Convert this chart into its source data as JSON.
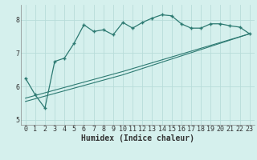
{
  "xlabel": "Humidex (Indice chaleur)",
  "ylabel": "",
  "bg_color": "#d5f0ed",
  "grid_color": "#b8dcd9",
  "line_color": "#2d7a72",
  "xlim": [
    -0.5,
    23.5
  ],
  "ylim": [
    4.85,
    8.45
  ],
  "xticks": [
    0,
    1,
    2,
    3,
    4,
    5,
    6,
    7,
    8,
    9,
    10,
    11,
    12,
    13,
    14,
    15,
    16,
    17,
    18,
    19,
    20,
    21,
    22,
    23
  ],
  "yticks": [
    5,
    6,
    7,
    8
  ],
  "main_line_x": [
    0,
    1,
    2,
    3,
    4,
    5,
    6,
    7,
    8,
    9,
    10,
    11,
    12,
    13,
    14,
    15,
    16,
    17,
    18,
    19,
    20,
    21,
    22,
    23
  ],
  "main_line_y": [
    6.25,
    5.75,
    5.35,
    6.75,
    6.85,
    7.3,
    7.85,
    7.65,
    7.7,
    7.55,
    7.92,
    7.75,
    7.92,
    8.05,
    8.15,
    8.12,
    7.88,
    7.75,
    7.75,
    7.88,
    7.88,
    7.82,
    7.78,
    7.58
  ],
  "line2_x": [
    0,
    10,
    23
  ],
  "line2_y": [
    5.55,
    6.35,
    7.58
  ],
  "line3_x": [
    0,
    10,
    23
  ],
  "line3_y": [
    5.65,
    6.45,
    7.58
  ],
  "font_family": "monospace",
  "tick_fontsize": 6,
  "xlabel_fontsize": 7
}
